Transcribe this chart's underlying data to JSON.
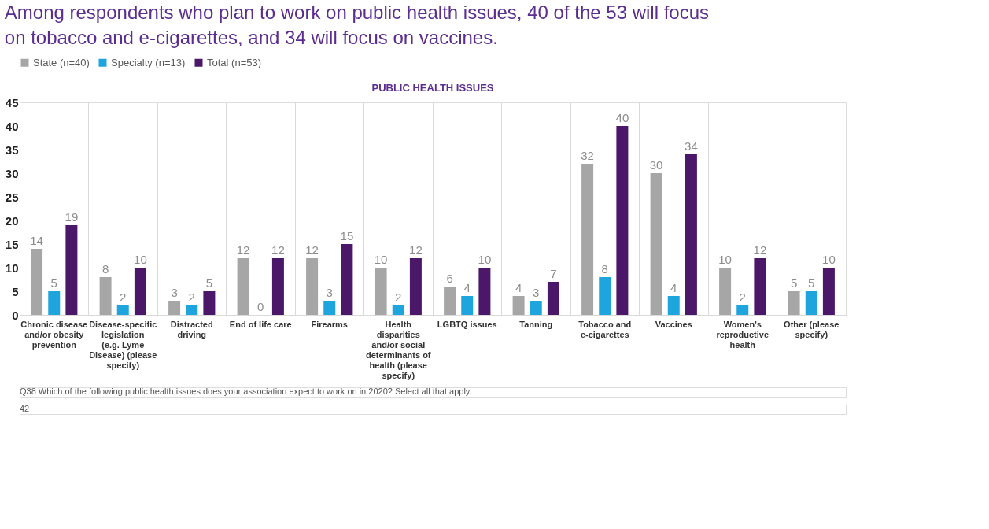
{
  "chart_data": {
    "type": "bar",
    "title": "Among respondents who plan to work on public health issues, 40 of the 53 will focus on tobacco and e-cigarettes, and 34 will focus on vaccines.",
    "subtitle": "PUBLIC HEALTH ISSUES",
    "categories": [
      "Chronic disease and/or obesity prevention",
      "Disease-specific legislation (e.g. Lyme Disease) (please specify)",
      "Distracted driving",
      "End of life care",
      "Firearms",
      "Health disparities and/or social determinants of health (please specify)",
      "LGBTQ issues",
      "Tanning",
      "Tobacco and e-cigarettes",
      "Vaccines",
      "Women's reproductive health",
      "Other (please specify)"
    ],
    "series": [
      {
        "name": "State (n=40)",
        "color": "#a6a6a6",
        "values": [
          14,
          8,
          3,
          12,
          12,
          10,
          6,
          4,
          32,
          30,
          10,
          5
        ]
      },
      {
        "name": "Specialty (n=13)",
        "color": "#1ea5de",
        "values": [
          5,
          2,
          2,
          0,
          3,
          2,
          4,
          3,
          8,
          4,
          2,
          5
        ]
      },
      {
        "name": "Total (n=53)",
        "color": "#4a1769",
        "values": [
          19,
          10,
          5,
          12,
          15,
          12,
          10,
          7,
          40,
          34,
          12,
          10
        ]
      }
    ],
    "ylim": [
      0,
      45
    ],
    "yticks": [
      0,
      5,
      10,
      15,
      20,
      25,
      30,
      35,
      40,
      45
    ],
    "grid": "x",
    "legend": "top",
    "data_labels": true,
    "annotations": [
      "Q38 Which of the following public health issues does your association expect to work on in 2020? Select all that apply.",
      "42"
    ]
  }
}
